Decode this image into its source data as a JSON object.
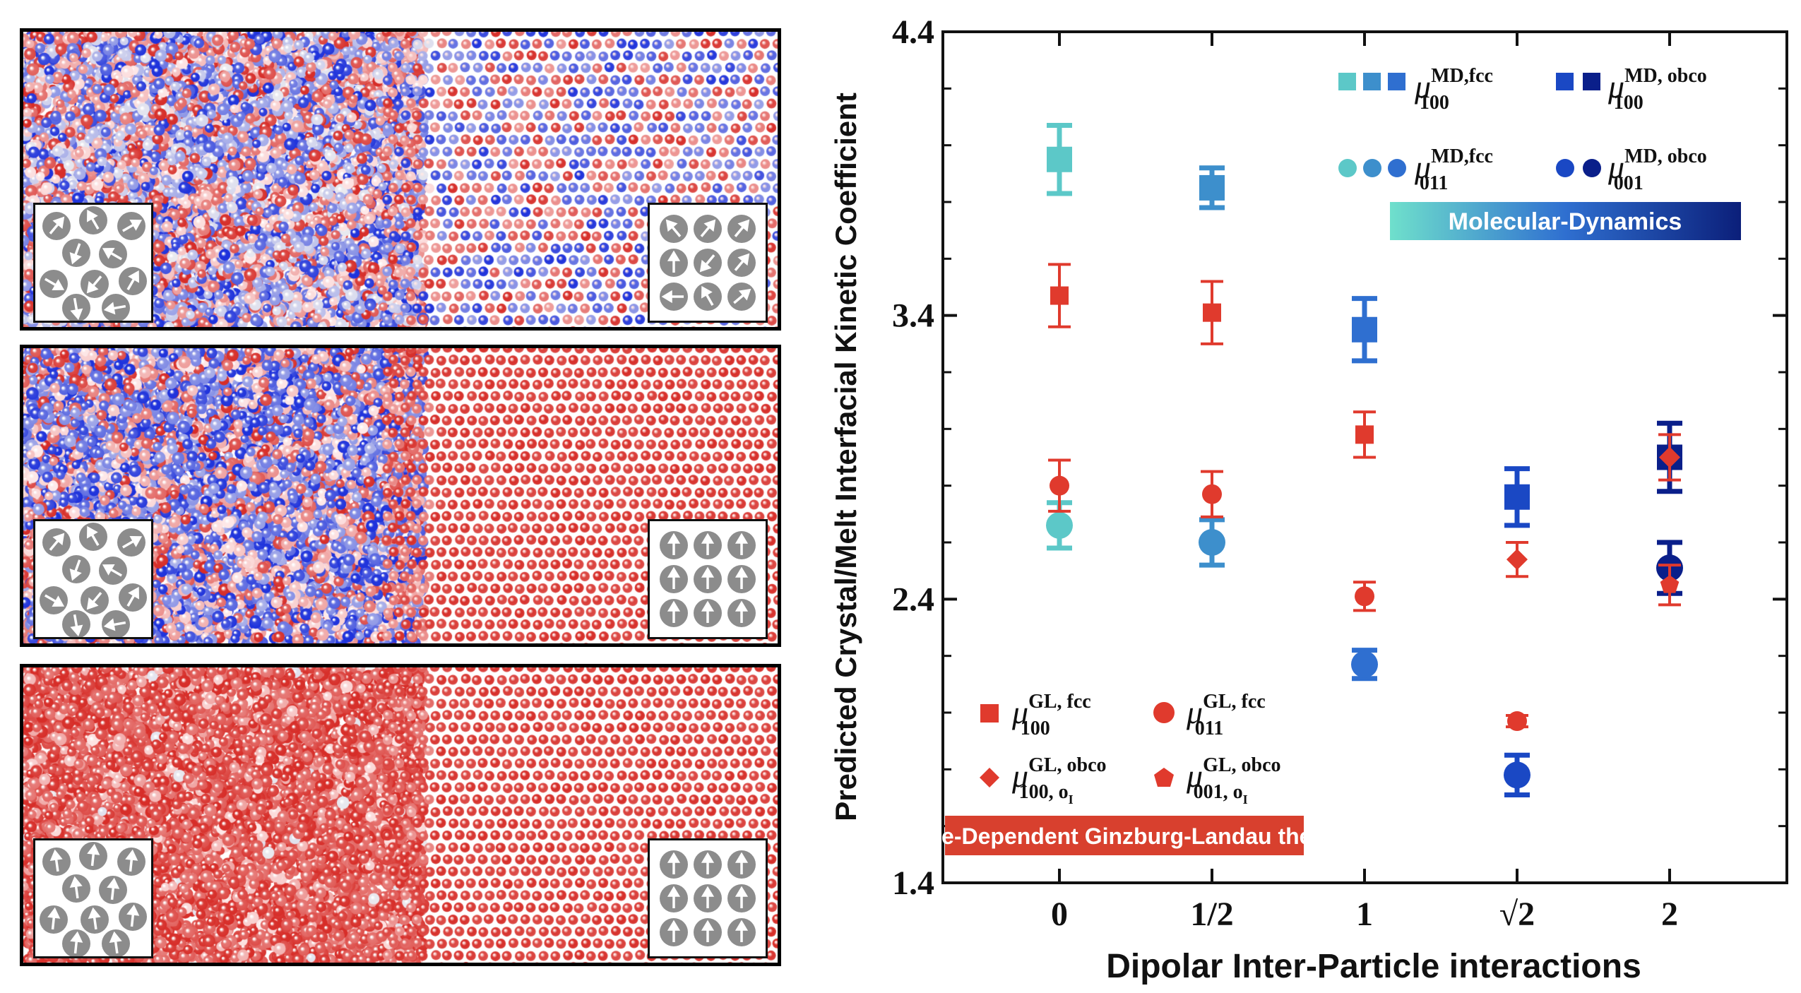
{
  "panels": [
    {
      "name": "panel-top",
      "mix": "blue-red",
      "left_inset": "random",
      "right_inset": "mixed"
    },
    {
      "name": "panel-middle",
      "mix": "blue-red-right",
      "left_inset": "random",
      "right_inset": "up"
    },
    {
      "name": "panel-bottom",
      "mix": "red",
      "left_inset": "up",
      "right_inset": "up"
    }
  ],
  "legend_md": {
    "fcc100": {
      "mu": "μ",
      "sup": "MD,fcc",
      "sub": "100"
    },
    "obco100": {
      "mu": "μ",
      "sup": "MD, obco",
      "sub": "100"
    },
    "fcc011": {
      "mu": "μ",
      "sup": "MD,fcc",
      "sub": "011"
    },
    "obco001": {
      "mu": "μ",
      "sup": "MD, obco",
      "sub": "001"
    }
  },
  "legend_gl": {
    "fcc100": {
      "mu": "μ",
      "sup": "GL, fcc",
      "sub": "100"
    },
    "fcc011": {
      "mu": "μ",
      "sup": "GL, fcc",
      "sub": "011"
    },
    "obco100": {
      "mu": "μ",
      "sup": "GL, obco",
      "sub": "100, o",
      "subsub": "I"
    },
    "obco001": {
      "mu": "μ",
      "sup": "GL, obco",
      "sub": "001, o",
      "subsub": "I"
    }
  },
  "badges": {
    "md": "Molecular-Dynamics",
    "gl": "Time-Dependent Ginzburg-Landau theory"
  },
  "colors": {
    "red": "#e03a2d",
    "cyan": "#5cc8c8",
    "blue1": "#3d8fcc",
    "blue2": "#2f6fd0",
    "blue3": "#1a48c4",
    "navy": "#0a1f8a"
  },
  "chart_data": {
    "type": "scatter",
    "xlabel": "Dipolar Inter-Particle interactions",
    "ylabel": "Predicted Crystal/Melt Interfacial Kinetic Coefficient",
    "categories": [
      "0",
      "1/2",
      "1",
      "√2",
      "2"
    ],
    "ylim": [
      1.4,
      4.4
    ],
    "yticks": [
      "1.4",
      "2.4",
      "3.4",
      "4.4"
    ],
    "series": [
      {
        "name": "mu_100_MD_fcc",
        "marker": "square",
        "group": "MD",
        "points": [
          {
            "x": 0,
            "y": 3.95,
            "err": 0.12,
            "color": "#5cc8c8"
          },
          {
            "x": 1,
            "y": 3.85,
            "err": 0.07,
            "color": "#3d8fcc"
          },
          {
            "x": 2,
            "y": 3.35,
            "err": 0.11,
            "color": "#2f6fd0"
          }
        ]
      },
      {
        "name": "mu_100_MD_obco",
        "marker": "square",
        "group": "MD",
        "points": [
          {
            "x": 3,
            "y": 2.76,
            "err": 0.1,
            "color": "#1a48c4"
          },
          {
            "x": 4,
            "y": 2.9,
            "err": 0.12,
            "color": "#0a1f8a"
          }
        ]
      },
      {
        "name": "mu_011_MD_fcc",
        "marker": "circle",
        "group": "MD",
        "points": [
          {
            "x": 0,
            "y": 2.66,
            "err": 0.08,
            "color": "#5cc8c8"
          },
          {
            "x": 1,
            "y": 2.6,
            "err": 0.08,
            "color": "#3d8fcc"
          },
          {
            "x": 2,
            "y": 2.17,
            "err": 0.05,
            "color": "#2f6fd0"
          }
        ]
      },
      {
        "name": "mu_001_MD_obco",
        "marker": "circle",
        "group": "MD",
        "points": [
          {
            "x": 3,
            "y": 1.78,
            "err": 0.07,
            "color": "#1a48c4"
          },
          {
            "x": 4,
            "y": 2.51,
            "err": 0.09,
            "color": "#0a1f8a"
          }
        ]
      },
      {
        "name": "mu_100_GL_fcc",
        "marker": "square",
        "group": "GL",
        "points": [
          {
            "x": 0,
            "y": 3.47,
            "err": 0.11,
            "color": "#e03a2d"
          },
          {
            "x": 1,
            "y": 3.41,
            "err": 0.11,
            "color": "#e03a2d"
          },
          {
            "x": 2,
            "y": 2.98,
            "err": 0.08,
            "color": "#e03a2d"
          }
        ]
      },
      {
        "name": "mu_011_GL_fcc",
        "marker": "circle",
        "group": "GL",
        "points": [
          {
            "x": 0,
            "y": 2.8,
            "err": 0.09,
            "color": "#e03a2d"
          },
          {
            "x": 1,
            "y": 2.77,
            "err": 0.08,
            "color": "#e03a2d"
          },
          {
            "x": 2,
            "y": 2.41,
            "err": 0.05,
            "color": "#e03a2d"
          },
          {
            "x": 3,
            "y": 1.97,
            "err": 0.02,
            "color": "#e03a2d"
          }
        ]
      },
      {
        "name": "mu_100_GL_obco",
        "marker": "diamond",
        "group": "GL",
        "points": [
          {
            "x": 3,
            "y": 2.54,
            "err": 0.06,
            "color": "#e03a2d"
          },
          {
            "x": 4,
            "y": 2.9,
            "err": 0.08,
            "color": "#e03a2d"
          }
        ]
      },
      {
        "name": "mu_001_GL_obco",
        "marker": "pentagon",
        "group": "GL",
        "points": [
          {
            "x": 4,
            "y": 2.45,
            "err": 0.07,
            "color": "#e03a2d"
          }
        ]
      }
    ]
  }
}
